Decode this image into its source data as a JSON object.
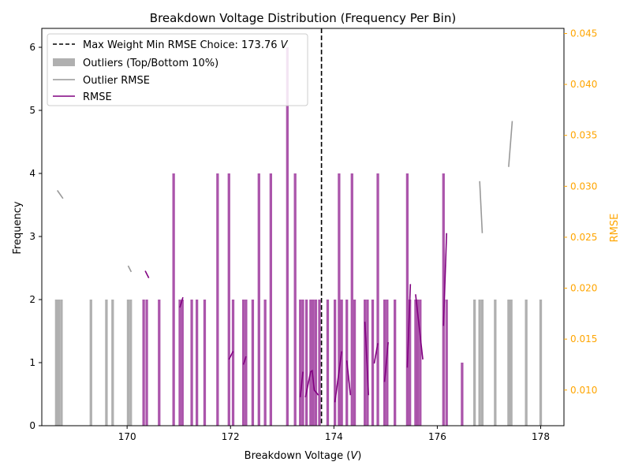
{
  "chart_data": {
    "type": "bar",
    "title": "Breakdown Voltage Distribution (Frequency Per Bin)",
    "xlabel": "Breakdown Voltage (",
    "xlabel_unit": "V",
    "xlabel_close": ")",
    "ylabel": "Frequency",
    "y2label": "RMSE",
    "xlim": [
      168.35,
      178.45
    ],
    "ylim": [
      0,
      6.3
    ],
    "y2lim": [
      0.0065,
      0.0455
    ],
    "bin_width": 0.05,
    "xticks": [
      170,
      172,
      174,
      176,
      178
    ],
    "yticks": [
      0,
      1,
      2,
      3,
      4,
      5,
      6
    ],
    "y2ticks": [
      0.01,
      0.015,
      0.02,
      0.025,
      0.03,
      0.035,
      0.04,
      0.045
    ],
    "xtick_labels": [
      "170",
      "172",
      "174",
      "176",
      "178"
    ],
    "ytick_labels": [
      "0",
      "1",
      "2",
      "3",
      "4",
      "5",
      "6"
    ],
    "y2tick_labels": [
      "0.010",
      "0.015",
      "0.020",
      "0.025",
      "0.030",
      "0.035",
      "0.040",
      "0.045"
    ],
    "grid": false,
    "legend_position": "top-left",
    "vline": {
      "x": 173.76,
      "label": "Max Weight Min RMSE Choice: 173.76 ",
      "label_unit": "V"
    },
    "series": [
      {
        "name": "Outliers (Top/Bottom 10%)",
        "kind": "bar",
        "color": "#b0b0b0",
        "x": [
          168.63,
          168.68,
          168.73,
          169.3,
          169.6,
          169.72,
          170.02,
          170.07,
          176.72,
          176.82,
          176.87,
          177.12,
          177.38,
          177.43,
          177.72,
          178.0
        ],
        "values": [
          2,
          2,
          2,
          2,
          2,
          2,
          2,
          2,
          2,
          2,
          2,
          2,
          2,
          2,
          2,
          2
        ]
      },
      {
        "name": "",
        "kind": "bar",
        "color": "#a64ca6",
        "x": [
          170.32,
          170.38,
          170.62,
          170.9,
          171.02,
          171.07,
          171.25,
          171.35,
          171.5,
          171.75,
          171.97,
          172.05,
          172.25,
          172.3,
          172.43,
          172.55,
          172.67,
          172.78,
          173.1,
          173.25,
          173.35,
          173.4,
          173.47,
          173.55,
          173.6,
          173.65,
          173.72,
          173.88,
          174.02,
          174.1,
          174.15,
          174.25,
          174.35,
          174.4,
          174.6,
          174.65,
          174.75,
          174.85,
          174.98,
          175.03,
          175.18,
          175.42,
          175.47,
          175.58,
          175.62,
          175.67,
          176.12,
          176.18,
          176.48
        ],
        "values": [
          2,
          2,
          2,
          4,
          2,
          2,
          2,
          2,
          2,
          4,
          4,
          2,
          2,
          2,
          2,
          4,
          2,
          4,
          6,
          4,
          2,
          2,
          2,
          2,
          2,
          2,
          2,
          2,
          2,
          4,
          2,
          2,
          4,
          2,
          2,
          2,
          2,
          4,
          2,
          2,
          2,
          4,
          2,
          2,
          2,
          2,
          4,
          2,
          1
        ]
      },
      {
        "name": "Outlier RMSE",
        "kind": "line",
        "axis": "right",
        "color": "#999999",
        "segments": [
          [
            [
              168.65,
              0.0296
            ],
            [
              168.76,
              0.0288
            ]
          ],
          [
            [
              170.02,
              0.0222
            ],
            [
              170.08,
              0.0216
            ]
          ],
          [
            [
              176.82,
              0.0305
            ],
            [
              176.87,
              0.0254
            ]
          ],
          [
            [
              177.38,
              0.0319
            ],
            [
              177.45,
              0.0364
            ]
          ]
        ]
      },
      {
        "name": "RMSE",
        "kind": "line",
        "axis": "right",
        "color": "#800080",
        "segments": [
          [
            [
              170.35,
              0.0217
            ],
            [
              170.42,
              0.021
            ]
          ],
          [
            [
              171.02,
              0.0181
            ],
            [
              171.08,
              0.0191
            ]
          ],
          [
            [
              171.97,
              0.013
            ],
            [
              172.05,
              0.0138
            ]
          ],
          [
            [
              172.25,
              0.0125
            ],
            [
              172.3,
              0.0133
            ]
          ],
          [
            [
              173.35,
              0.0093
            ],
            [
              173.4,
              0.0118
            ]
          ],
          [
            [
              173.45,
              0.0093
            ],
            [
              173.55,
              0.0118
            ],
            [
              173.58,
              0.0119
            ],
            [
              173.62,
              0.01
            ],
            [
              173.7,
              0.0095
            ]
          ],
          [
            [
              174.02,
              0.0088
            ],
            [
              174.15,
              0.0138
            ]
          ],
          [
            [
              174.25,
              0.0129
            ],
            [
              174.32,
              0.0095
            ]
          ],
          [
            [
              174.6,
              0.0167
            ],
            [
              174.67,
              0.0095
            ]
          ],
          [
            [
              174.78,
              0.0126
            ],
            [
              174.85,
              0.0146
            ]
          ],
          [
            [
              174.98,
              0.0108
            ],
            [
              175.05,
              0.0147
            ]
          ],
          [
            [
              175.42,
              0.0122
            ],
            [
              175.48,
              0.0204
            ]
          ],
          [
            [
              175.58,
              0.0194
            ],
            [
              175.72,
              0.013
            ]
          ],
          [
            [
              176.12,
              0.0163
            ],
            [
              176.18,
              0.0254
            ]
          ]
        ]
      }
    ]
  }
}
